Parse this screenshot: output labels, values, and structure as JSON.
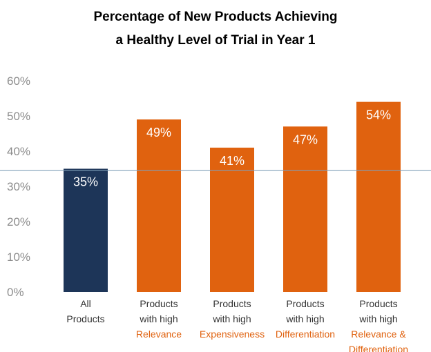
{
  "colors": {
    "primary_bar": "#1d3558",
    "accent_bar": "#e0620f",
    "reference_line": "#7f9fb8",
    "category_text": "#333333",
    "category_highlight_text": "#e0620f",
    "tick_text": "#8c8c8c",
    "data_label_text": "#ffffff"
  },
  "chart_data": {
    "type": "bar",
    "title": [
      "Percentage of New Products Achieving",
      "a Healthy Level of Trial in Year 1"
    ],
    "xlabel": "",
    "ylabel": "",
    "ylim": [
      0,
      60
    ],
    "yticks": [
      0,
      10,
      20,
      30,
      40,
      50,
      60
    ],
    "ytick_labels": [
      "0%",
      "10%",
      "20%",
      "30%",
      "40%",
      "50%",
      "60%"
    ],
    "grid": false,
    "reference_line": 34.5,
    "categories": [
      {
        "lines": [
          "All",
          "Products"
        ],
        "highlight": []
      },
      {
        "lines": [
          "Products",
          "with high"
        ],
        "highlight": [
          "Relevance"
        ]
      },
      {
        "lines": [
          "Products",
          "with high"
        ],
        "highlight": [
          "Expensiveness"
        ]
      },
      {
        "lines": [
          "Products",
          "with high"
        ],
        "highlight": [
          "Differentiation"
        ]
      },
      {
        "lines": [
          "Products",
          "with high"
        ],
        "highlight": [
          "Relevance &",
          "Differentiation"
        ]
      }
    ],
    "values": [
      35,
      49,
      41,
      47,
      54
    ],
    "value_labels": [
      "35%",
      "49%",
      "41%",
      "47%",
      "54%"
    ],
    "bar_style": [
      "primary",
      "accent",
      "accent",
      "accent",
      "accent"
    ]
  }
}
